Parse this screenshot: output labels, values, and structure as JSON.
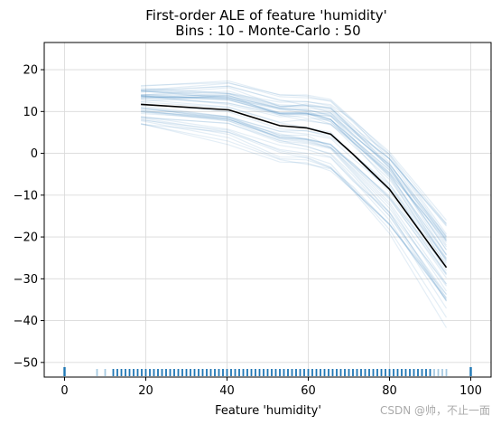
{
  "chart_data": {
    "type": "line",
    "title": "First-order ALE of feature 'humidity'",
    "subtitle": "Bins : 10 - Monte-Carlo : 50",
    "xlabel": "Feature 'humidity'",
    "ylabel": "",
    "xlim": [
      -5,
      105
    ],
    "ylim": [
      -53.5,
      26.5
    ],
    "xticks": [
      0,
      20,
      40,
      60,
      80,
      100
    ],
    "yticks": [
      20,
      10,
      0,
      -10,
      -20,
      -30,
      -40,
      -50
    ],
    "grid": true,
    "series": [
      {
        "role": "mean",
        "color": "#000000",
        "x": [
          18.8,
          40.4,
          53.0,
          59.5,
          65.5,
          71.0,
          80.0,
          94.0
        ],
        "y": [
          11.7,
          10.4,
          6.6,
          6.1,
          4.6,
          -0.2,
          -8.6,
          -27.3
        ]
      }
    ],
    "monte_carlo": {
      "count": 50,
      "color": "#1f77b4",
      "spread_start": 4.5,
      "spread_end": 11.0
    },
    "rug": {
      "color": "#1f77b4",
      "x": [
        0,
        8,
        10,
        12,
        13,
        14,
        15,
        16,
        17,
        18,
        19,
        20,
        21,
        22,
        23,
        24,
        25,
        26,
        27,
        28,
        29,
        30,
        31,
        32,
        33,
        34,
        35,
        36,
        37,
        38,
        39,
        40,
        41,
        42,
        43,
        44,
        45,
        46,
        47,
        48,
        49,
        50,
        51,
        52,
        53,
        54,
        55,
        56,
        57,
        58,
        59,
        60,
        61,
        62,
        63,
        64,
        65,
        66,
        67,
        68,
        69,
        70,
        71,
        72,
        73,
        74,
        75,
        76,
        77,
        78,
        79,
        80,
        81,
        82,
        83,
        84,
        85,
        86,
        87,
        88,
        89,
        90,
        91,
        92,
        93,
        94,
        100
      ]
    },
    "watermark": "CSDN @帅，不止一面"
  }
}
